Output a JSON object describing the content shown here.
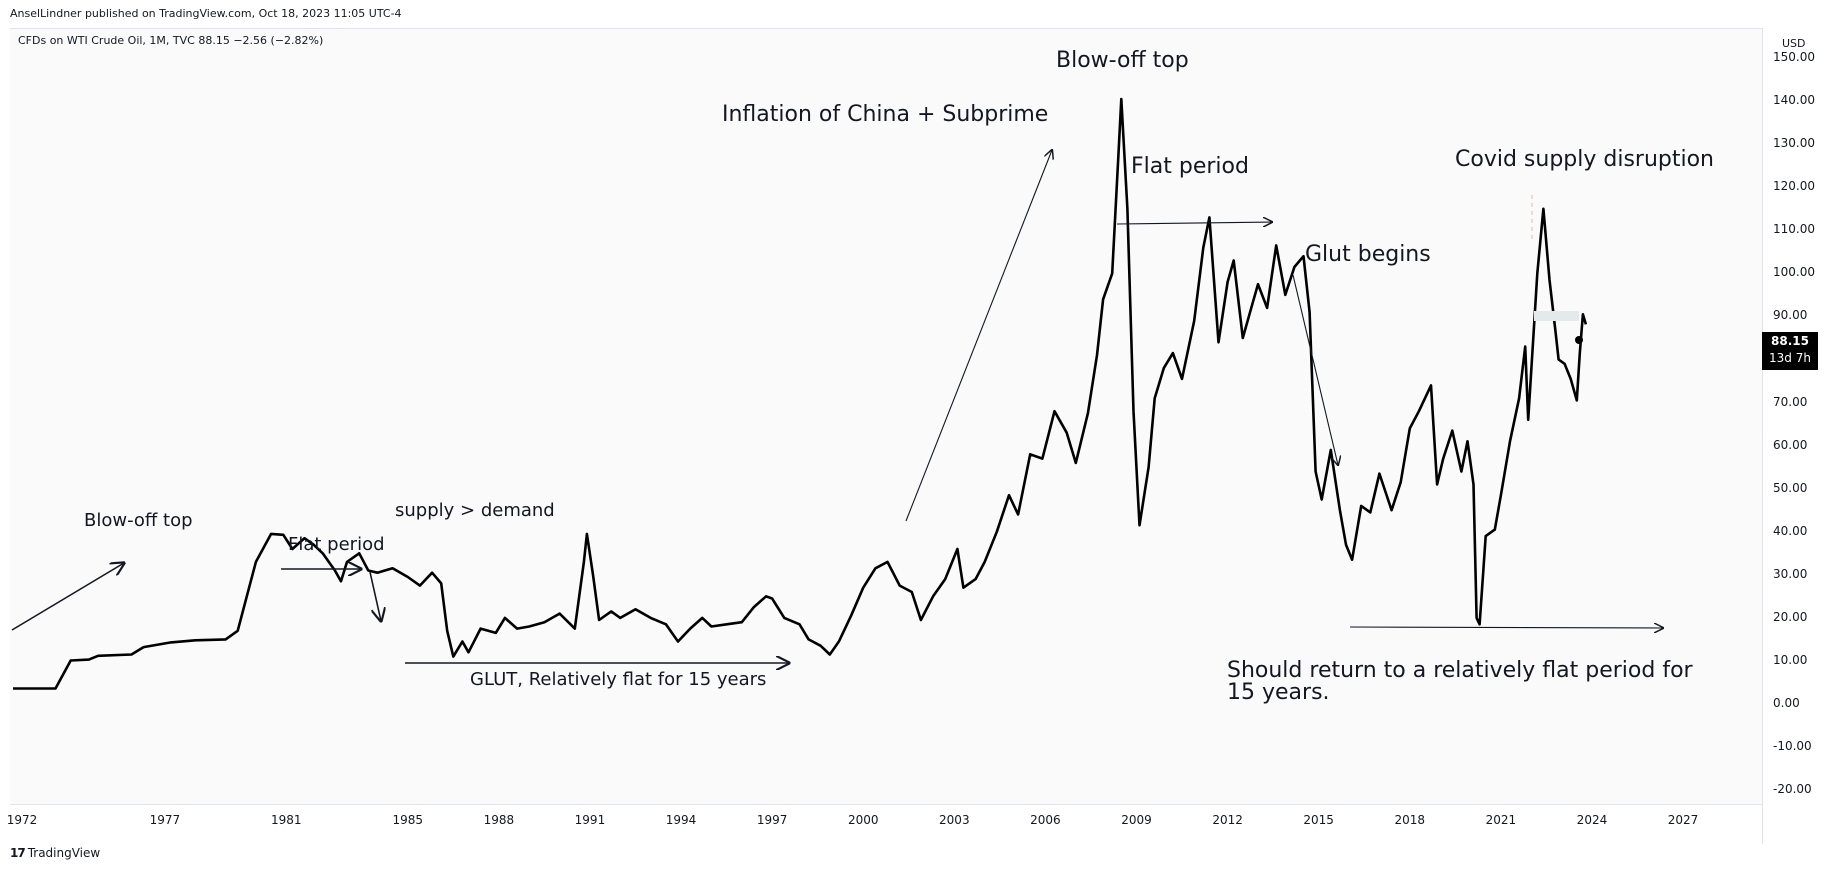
{
  "header": {
    "publisher": "AnselLindner published on TradingView.com, Oct 18, 2023 11:05 UTC-4",
    "legend": "CFDs on WTI Crude Oil, 1M, TVC  88.15  −2.56 (−2.82%)"
  },
  "price_axis": {
    "currency": "USD",
    "last_price": "88.15",
    "countdown": "13d 7h"
  },
  "footer": {
    "logo_mark": "17",
    "brand": "TradingView"
  },
  "annotations": {
    "blowoff_top_1980": "Blow-off top",
    "flat_period_1980s": "Flat period",
    "supply_demand": "supply > demand",
    "glut": "GLUT, Relatively flat for 15 years",
    "china_subprime": "Inflation of China + Subprime",
    "blowoff_top_2008": "Blow-off top",
    "flat_period_2010s": "Flat period",
    "glut_begins": "Glut begins",
    "covid": "Covid supply disruption",
    "should_return": "Should return to a relatively flat period for 15 years."
  },
  "colors": {
    "line": "#000000",
    "background": "#fafafa",
    "grid_text": "#131722"
  },
  "chart_data": {
    "type": "line",
    "title": "CFDs on WTI Crude Oil, 1M, TVC",
    "xlabel": "",
    "ylabel": "",
    "x_ticks": [
      "1972",
      "1977",
      "1981",
      "1985",
      "1988",
      "1991",
      "1994",
      "1997",
      "2000",
      "2003",
      "2006",
      "2009",
      "2012",
      "2015",
      "2018",
      "2021",
      "2024",
      "2027"
    ],
    "y_ticks": [
      "150.00",
      "140.00",
      "130.00",
      "120.00",
      "110.00",
      "100.00",
      "90.00",
      "80.00",
      "70.00",
      "60.00",
      "50.00",
      "40.00",
      "30.00",
      "20.00",
      "10.00",
      "0.00",
      "-10.00",
      "-20.00"
    ],
    "ylim": [
      -23,
      157
    ],
    "xlim": [
      1971.9,
      2029.6
    ],
    "series": [
      {
        "values": [
          [
            1972.0,
            3.6
          ],
          [
            1973.4,
            3.6
          ],
          [
            1973.9,
            10.1
          ],
          [
            1974.5,
            10.3
          ],
          [
            1974.8,
            11.2
          ],
          [
            1975.9,
            11.5
          ],
          [
            1976.3,
            13.2
          ],
          [
            1977.2,
            14.3
          ],
          [
            1978.0,
            14.8
          ],
          [
            1979.0,
            15.0
          ],
          [
            1979.4,
            17.0
          ],
          [
            1979.7,
            25.0
          ],
          [
            1980.0,
            33.0
          ],
          [
            1980.5,
            39.5
          ],
          [
            1980.9,
            39.3
          ],
          [
            1981.2,
            36.0
          ],
          [
            1981.6,
            38.5
          ],
          [
            1981.9,
            37.0
          ],
          [
            1982.2,
            35.0
          ],
          [
            1982.6,
            31.0
          ],
          [
            1982.8,
            28.5
          ],
          [
            1983.0,
            33.0
          ],
          [
            1983.4,
            35.0
          ],
          [
            1983.7,
            31.0
          ],
          [
            1984.0,
            30.5
          ],
          [
            1984.5,
            31.5
          ],
          [
            1985.0,
            29.5
          ],
          [
            1985.4,
            27.5
          ],
          [
            1985.8,
            30.5
          ],
          [
            1986.1,
            28.0
          ],
          [
            1986.3,
            17.0
          ],
          [
            1986.5,
            11.0
          ],
          [
            1986.8,
            14.5
          ],
          [
            1987.0,
            12.0
          ],
          [
            1987.4,
            17.5
          ],
          [
            1987.9,
            16.5
          ],
          [
            1988.2,
            20.0
          ],
          [
            1988.6,
            17.5
          ],
          [
            1989.0,
            18.0
          ],
          [
            1989.5,
            19.0
          ],
          [
            1990.0,
            21.0
          ],
          [
            1990.5,
            17.5
          ],
          [
            1990.8,
            33.0
          ],
          [
            1990.9,
            39.5
          ],
          [
            1991.1,
            30.0
          ],
          [
            1991.3,
            19.5
          ],
          [
            1991.7,
            21.5
          ],
          [
            1992.0,
            20.0
          ],
          [
            1992.5,
            22.0
          ],
          [
            1993.0,
            20.0
          ],
          [
            1993.5,
            18.5
          ],
          [
            1993.9,
            14.5
          ],
          [
            1994.3,
            17.5
          ],
          [
            1994.7,
            20.0
          ],
          [
            1995.0,
            18.0
          ],
          [
            1995.5,
            18.5
          ],
          [
            1996.0,
            19.0
          ],
          [
            1996.4,
            22.5
          ],
          [
            1996.8,
            25.0
          ],
          [
            1997.0,
            24.5
          ],
          [
            1997.4,
            20.0
          ],
          [
            1997.9,
            18.5
          ],
          [
            1998.2,
            15.0
          ],
          [
            1998.6,
            13.5
          ],
          [
            1998.9,
            11.5
          ],
          [
            1999.2,
            14.5
          ],
          [
            1999.6,
            20.5
          ],
          [
            2000.0,
            27.0
          ],
          [
            2000.4,
            31.5
          ],
          [
            2000.8,
            33.0
          ],
          [
            2001.2,
            27.5
          ],
          [
            2001.6,
            26.0
          ],
          [
            2001.9,
            19.5
          ],
          [
            2002.3,
            25.0
          ],
          [
            2002.7,
            29.0
          ],
          [
            2003.1,
            36.0
          ],
          [
            2003.3,
            27.0
          ],
          [
            2003.7,
            29.0
          ],
          [
            2004.0,
            33.0
          ],
          [
            2004.4,
            40.0
          ],
          [
            2004.8,
            48.5
          ],
          [
            2005.1,
            44.0
          ],
          [
            2005.5,
            58.0
          ],
          [
            2005.9,
            57.0
          ],
          [
            2006.3,
            68.0
          ],
          [
            2006.7,
            63.0
          ],
          [
            2007.0,
            56.0
          ],
          [
            2007.4,
            67.5
          ],
          [
            2007.7,
            81.0
          ],
          [
            2007.9,
            94.0
          ],
          [
            2008.2,
            100.0
          ],
          [
            2008.4,
            127.0
          ],
          [
            2008.5,
            140.5
          ],
          [
            2008.7,
            115.0
          ],
          [
            2008.9,
            68.0
          ],
          [
            2009.1,
            41.5
          ],
          [
            2009.4,
            55.0
          ],
          [
            2009.6,
            71.0
          ],
          [
            2009.9,
            78.0
          ],
          [
            2010.2,
            81.5
          ],
          [
            2010.5,
            75.5
          ],
          [
            2010.9,
            89.0
          ],
          [
            2011.2,
            106.0
          ],
          [
            2011.4,
            113.0
          ],
          [
            2011.7,
            84.0
          ],
          [
            2012.0,
            98.0
          ],
          [
            2012.2,
            103.0
          ],
          [
            2012.5,
            85.0
          ],
          [
            2012.8,
            92.5
          ],
          [
            2013.0,
            97.5
          ],
          [
            2013.3,
            92.0
          ],
          [
            2013.6,
            106.5
          ],
          [
            2013.9,
            95.0
          ],
          [
            2014.2,
            101.5
          ],
          [
            2014.5,
            104.0
          ],
          [
            2014.7,
            91.0
          ],
          [
            2014.9,
            54.0
          ],
          [
            2015.1,
            47.5
          ],
          [
            2015.4,
            59.0
          ],
          [
            2015.7,
            45.0
          ],
          [
            2015.9,
            37.0
          ],
          [
            2016.1,
            33.5
          ],
          [
            2016.4,
            46.0
          ],
          [
            2016.7,
            44.5
          ],
          [
            2017.0,
            53.5
          ],
          [
            2017.4,
            45.0
          ],
          [
            2017.7,
            51.5
          ],
          [
            2018.0,
            64.0
          ],
          [
            2018.3,
            68.0
          ],
          [
            2018.7,
            74.0
          ],
          [
            2018.9,
            51.0
          ],
          [
            2019.1,
            57.0
          ],
          [
            2019.4,
            63.5
          ],
          [
            2019.7,
            54.0
          ],
          [
            2019.9,
            61.0
          ],
          [
            2020.1,
            51.0
          ],
          [
            2020.2,
            20.0
          ],
          [
            2020.3,
            18.5
          ],
          [
            2020.5,
            39.0
          ],
          [
            2020.8,
            40.5
          ],
          [
            2021.0,
            48.5
          ],
          [
            2021.3,
            61.0
          ],
          [
            2021.6,
            71.0
          ],
          [
            2021.8,
            83.0
          ],
          [
            2021.9,
            66.0
          ],
          [
            2022.2,
            100.0
          ],
          [
            2022.4,
            115.0
          ],
          [
            2022.6,
            98.5
          ],
          [
            2022.8,
            86.5
          ],
          [
            2022.9,
            80.0
          ],
          [
            2023.1,
            79.0
          ],
          [
            2023.3,
            75.5
          ],
          [
            2023.5,
            70.5
          ],
          [
            2023.6,
            81.5
          ],
          [
            2023.7,
            90.5
          ],
          [
            2023.8,
            88.15
          ]
        ]
      }
    ]
  }
}
